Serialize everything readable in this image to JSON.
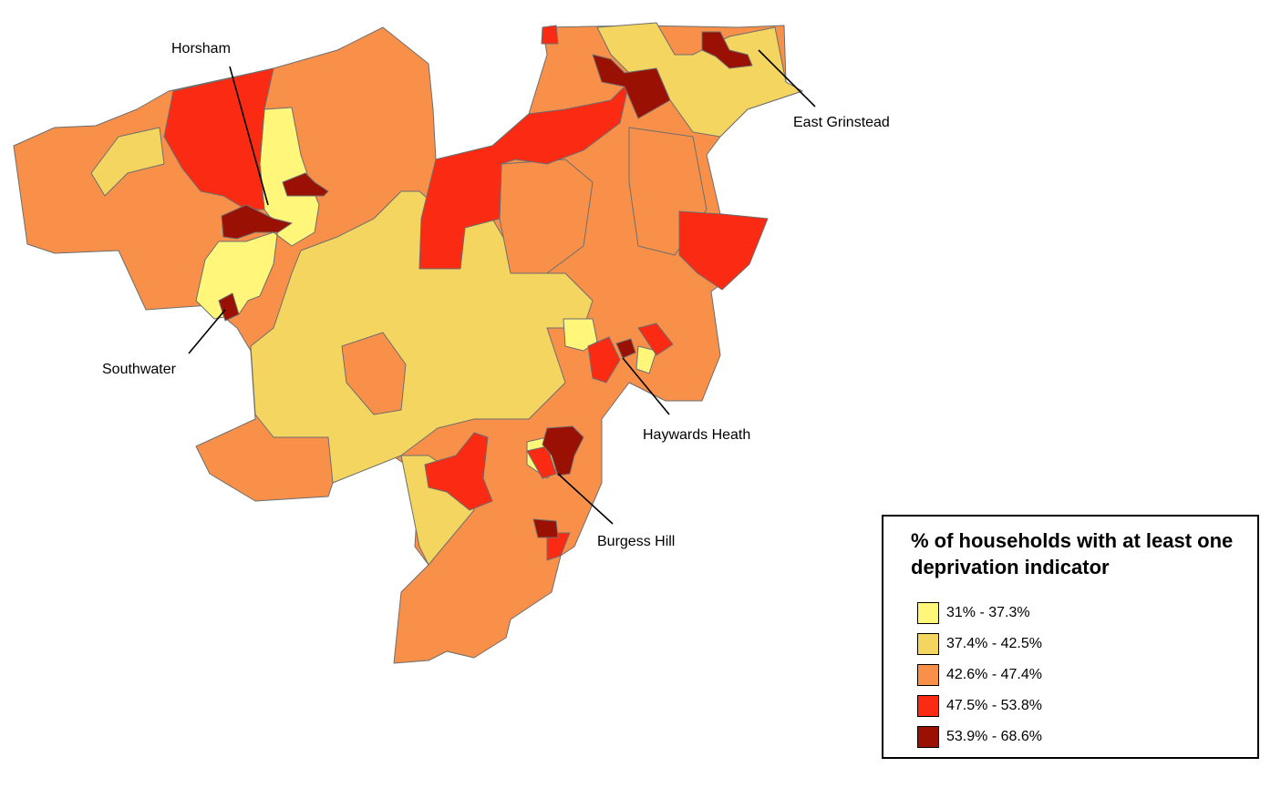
{
  "legend": {
    "title": "% of households with at least one deprivation indicator",
    "classes": [
      {
        "label": "31% - 37.3%",
        "color": "#fff67a"
      },
      {
        "label": "37.4% - 42.5%",
        "color": "#f3d560"
      },
      {
        "label": "42.6% - 47.4%",
        "color": "#f8904a"
      },
      {
        "label": "47.5% - 53.8%",
        "color": "#fb2a13"
      },
      {
        "label": "53.9% - 68.6%",
        "color": "#9a1002"
      }
    ]
  },
  "towns": {
    "horsham": "Horsham",
    "east_grinstead": "East Grinstead",
    "southwater": "Southwater",
    "haywards_heath": "Haywards Heath",
    "burgess_hill": "Burgess Hill"
  }
}
